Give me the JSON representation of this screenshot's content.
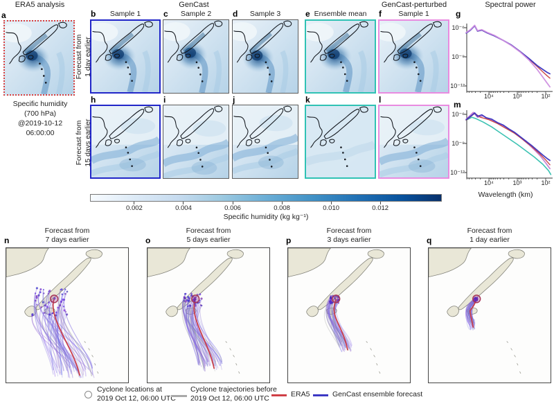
{
  "letters": {
    "a": "a",
    "b": "b",
    "c": "c",
    "d": "d",
    "e": "e",
    "f": "f",
    "g": "g",
    "h": "h",
    "i": "i",
    "j": "j",
    "k": "k",
    "l": "l",
    "m": "m",
    "n": "n",
    "o": "o",
    "p": "p",
    "q": "q"
  },
  "top": {
    "era5_title": "ERA5 analysis",
    "gencast_title": "GenCast",
    "gencast_perturbed_title": "GenCast-perturbed",
    "spectral_title": "Spectral power",
    "col_titles": [
      "Sample 1",
      "Sample 2",
      "Sample 3",
      "Ensemble mean",
      "Sample 1"
    ],
    "row1_label_lines": [
      "Forecast from",
      "1 day earlier"
    ],
    "row2_label_lines": [
      "Forecast from",
      "15 days earlier"
    ],
    "era5_caption_lines": [
      "Specific humidity",
      "(700 hPa)",
      "@2019-10-12",
      "06:00:00"
    ]
  },
  "spectral": {
    "yticks": [
      "10⁻⁶",
      "10⁻⁹",
      "10⁻¹²"
    ],
    "xticks": [
      "10⁴",
      "10³",
      "10²"
    ],
    "xlabel": "Wavelength (km)"
  },
  "colorbar": {
    "ticks": [
      "0.002",
      "0.004",
      "0.006",
      "0.008",
      "0.010",
      "0.012"
    ],
    "label": "Specific humidity (kg kg⁻¹)"
  },
  "bottom": {
    "panels": [
      {
        "letter": "n",
        "title_lines": [
          "Forecast from",
          "7 days earlier"
        ]
      },
      {
        "letter": "o",
        "title_lines": [
          "Forecast from",
          "5 days earlier"
        ]
      },
      {
        "letter": "p",
        "title_lines": [
          "Forecast from",
          "3 days earlier"
        ]
      },
      {
        "letter": "q",
        "title_lines": [
          "Forecast from",
          "1 day earlier"
        ]
      }
    ]
  },
  "legend": {
    "items": [
      {
        "marker": "circle",
        "color": "#888888",
        "label_lines": [
          "Cyclone locations at",
          "2019 Oct 12, 06:00 UTC"
        ]
      },
      {
        "marker": "line",
        "color": "#a9a9a9",
        "label_lines": [
          "Cyclone trajectories before",
          "2019 Oct 12, 06:00 UTC"
        ]
      },
      {
        "marker": "line",
        "color": "#cf4046",
        "label_lines": [
          "ERA5"
        ]
      },
      {
        "marker": "line",
        "color": "#3c38c4",
        "label_lines": [
          "GenCast ensemble forecast"
        ]
      }
    ]
  },
  "colors": {
    "gencast_border": "#2126c8",
    "gray_border": "#5c5c5c",
    "ensemble_border": "#2fc2b4",
    "perturbed_border": "#e98be0",
    "era5_dotted": "#d83e3e",
    "era5_line": "#c8403e",
    "gencast_line": "#3a35c0",
    "perturbed_line": "#cf8fe0",
    "ensemble_line": "#30bfae",
    "land": "#e9e7d7"
  },
  "chart_data": [
    {
      "id": "g",
      "type": "line",
      "panel_letter": "g",
      "title": "Spectral power",
      "x_scale": "log, wavelength decreasing to the right",
      "xlabel": "Wavelength (km)",
      "x_ticks_km": [
        10000,
        1000,
        100
      ],
      "y_ticks": [
        1e-06,
        1e-09,
        1e-12
      ],
      "series": [
        {
          "name": "ERA5",
          "color": "#c8403e",
          "width": 1.4,
          "points": [
            [
              4.8,
              -6.55
            ],
            [
              4.65,
              -6.25
            ],
            [
              4.5,
              -5.78
            ],
            [
              4.4,
              -6.35
            ],
            [
              4.25,
              -6.25
            ],
            [
              4.05,
              -6.55
            ],
            [
              3.8,
              -6.85
            ],
            [
              3.5,
              -7.3
            ],
            [
              3.2,
              -7.8
            ],
            [
              2.9,
              -8.45
            ],
            [
              2.6,
              -9.2
            ],
            [
              2.3,
              -10.0
            ],
            [
              2.1,
              -10.55
            ],
            [
              1.95,
              -10.95
            ],
            [
              1.85,
              -11.2
            ]
          ]
        },
        {
          "name": "GenCast sample",
          "color": "#3a35c0",
          "width": 1.8,
          "points": [
            [
              4.8,
              -6.55
            ],
            [
              4.65,
              -6.25
            ],
            [
              4.5,
              -5.8
            ],
            [
              4.4,
              -6.35
            ],
            [
              4.25,
              -6.25
            ],
            [
              4.05,
              -6.55
            ],
            [
              3.8,
              -6.85
            ],
            [
              3.5,
              -7.3
            ],
            [
              3.2,
              -7.8
            ],
            [
              2.9,
              -8.45
            ],
            [
              2.6,
              -9.15
            ],
            [
              2.3,
              -9.9
            ],
            [
              2.1,
              -10.3
            ],
            [
              1.95,
              -10.6
            ],
            [
              1.85,
              -10.75
            ]
          ]
        },
        {
          "name": "GenCast-perturbed sample",
          "color": "#cf8fe0",
          "width": 1.8,
          "points": [
            [
              4.8,
              -6.5
            ],
            [
              4.65,
              -6.2
            ],
            [
              4.5,
              -5.75
            ],
            [
              4.4,
              -6.3
            ],
            [
              4.25,
              -6.2
            ],
            [
              4.05,
              -6.5
            ],
            [
              3.8,
              -6.8
            ],
            [
              3.5,
              -7.3
            ],
            [
              3.2,
              -7.85
            ],
            [
              2.9,
              -8.5
            ],
            [
              2.6,
              -9.3
            ],
            [
              2.3,
              -10.3
            ],
            [
              2.1,
              -11.1
            ],
            [
              1.95,
              -11.7
            ],
            [
              1.85,
              -12.1
            ]
          ]
        }
      ]
    },
    {
      "id": "m",
      "type": "line",
      "panel_letter": "m",
      "title": "Spectral power",
      "x_scale": "log, wavelength decreasing to the right",
      "xlabel": "Wavelength (km)",
      "x_ticks_km": [
        10000,
        1000,
        100
      ],
      "y_ticks": [
        1e-06,
        1e-09,
        1e-12
      ],
      "series": [
        {
          "name": "Ensemble mean",
          "color": "#30bfae",
          "width": 1.6,
          "points": [
            [
              4.8,
              -6.6
            ],
            [
              4.6,
              -6.3
            ],
            [
              4.45,
              -6.45
            ],
            [
              4.2,
              -6.8
            ],
            [
              3.9,
              -7.3
            ],
            [
              3.6,
              -7.9
            ],
            [
              3.3,
              -8.5
            ],
            [
              3.0,
              -9.1
            ],
            [
              2.7,
              -9.75
            ],
            [
              2.4,
              -10.4
            ],
            [
              2.1,
              -11.15
            ],
            [
              1.9,
              -11.8
            ],
            [
              1.82,
              -12.2
            ]
          ]
        },
        {
          "name": "GenCast-perturbed sample",
          "color": "#c77fd4",
          "width": 1.8,
          "points": [
            [
              4.8,
              -6.5
            ],
            [
              4.55,
              -5.8
            ],
            [
              4.4,
              -6.3
            ],
            [
              4.2,
              -6.15
            ],
            [
              4.0,
              -6.5
            ],
            [
              3.8,
              -6.7
            ],
            [
              3.6,
              -7.0
            ],
            [
              3.4,
              -7.35
            ],
            [
              3.2,
              -7.7
            ],
            [
              3.0,
              -8.1
            ],
            [
              2.8,
              -8.6
            ],
            [
              2.6,
              -9.1
            ],
            [
              2.4,
              -9.65
            ],
            [
              2.2,
              -10.25
            ],
            [
              2.0,
              -11.0
            ],
            [
              1.85,
              -11.6
            ]
          ]
        },
        {
          "name": "ERA5",
          "color": "#c8403e",
          "width": 1.4,
          "points": [
            [
              4.8,
              -6.6
            ],
            [
              4.5,
              -5.9
            ],
            [
              4.3,
              -6.3
            ],
            [
              4.0,
              -6.55
            ],
            [
              3.7,
              -6.95
            ],
            [
              3.4,
              -7.45
            ],
            [
              3.1,
              -7.95
            ],
            [
              2.8,
              -8.6
            ],
            [
              2.5,
              -9.3
            ],
            [
              2.2,
              -10.1
            ],
            [
              2.0,
              -10.7
            ],
            [
              1.85,
              -11.2
            ]
          ]
        },
        {
          "name": "GenCast sample",
          "color": "#3a35c0",
          "width": 1.8,
          "points": [
            [
              4.8,
              -6.55
            ],
            [
              4.6,
              -6.1
            ],
            [
              4.5,
              -5.85
            ],
            [
              4.4,
              -6.2
            ],
            [
              4.25,
              -6.05
            ],
            [
              4.1,
              -6.35
            ],
            [
              3.9,
              -6.5
            ],
            [
              3.7,
              -6.85
            ],
            [
              3.5,
              -7.1
            ],
            [
              3.3,
              -7.5
            ],
            [
              3.1,
              -7.85
            ],
            [
              2.9,
              -8.3
            ],
            [
              2.7,
              -8.75
            ],
            [
              2.5,
              -9.2
            ],
            [
              2.3,
              -9.7
            ],
            [
              2.1,
              -10.2
            ],
            [
              1.95,
              -10.55
            ],
            [
              1.85,
              -10.75
            ]
          ]
        }
      ]
    },
    {
      "id": "colorbar",
      "type": "heatmap_scale",
      "min": 0.0002,
      "max": 0.0145,
      "tick_values": [
        0.002,
        0.004,
        0.006,
        0.008,
        0.01,
        0.012
      ],
      "label": "Specific humidity (kg kg⁻¹)",
      "palette": [
        "#f7fbff",
        "#deebf7",
        "#c6dbef",
        "#9ecae1",
        "#6baed6",
        "#4292c6",
        "#2171b5",
        "#08519c",
        "#08306b"
      ]
    },
    {
      "id": "trajectories",
      "type": "map_tracks",
      "verification_point_frac": [
        0.39,
        0.38
      ],
      "panels": [
        {
          "letter": "n",
          "lead_days": 7,
          "tracks": 46,
          "end_scatter": 55,
          "far_x": 98,
          "far_spread": 62,
          "far_y": 182,
          "seed": 11
        },
        {
          "letter": "o",
          "lead_days": 5,
          "tracks": 40,
          "end_scatter": 26,
          "far_x": 92,
          "far_spread": 36,
          "far_y": 172,
          "seed": 22
        },
        {
          "letter": "p",
          "lead_days": 3,
          "tracks": 34,
          "end_scatter": 15,
          "far_x": 84,
          "far_spread": 20,
          "far_y": 145,
          "seed": 33
        },
        {
          "letter": "q",
          "lead_days": 1,
          "tracks": 30,
          "end_scatter": 6,
          "far_x": 64,
          "far_spread": 8,
          "far_y": 112,
          "seed": 44
        }
      ],
      "series_legend": [
        "Cyclone locations at 2019 Oct 12, 06:00 UTC",
        "Cyclone trajectories before 2019 Oct 12, 06:00 UTC",
        "ERA5",
        "GenCast ensemble forecast"
      ]
    }
  ]
}
